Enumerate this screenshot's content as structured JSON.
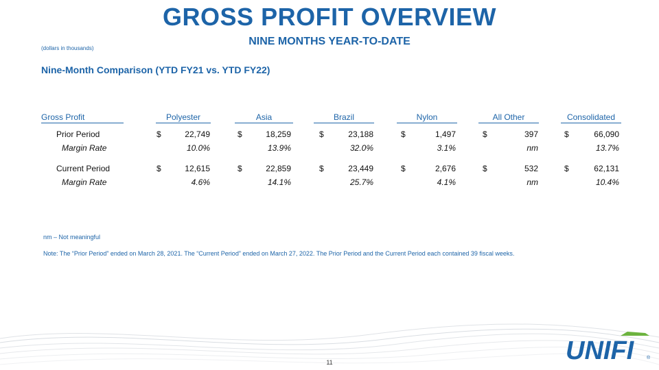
{
  "slide": {
    "title": "GROSS PROFIT OVERVIEW",
    "subtitle": "NINE MONTHS YEAR-TO-DATE",
    "units": "(dollars in thousands)",
    "section_heading": "Nine-Month Comparison (YTD FY21 vs. YTD FY22)",
    "page_number": "11"
  },
  "table": {
    "headers": [
      "Gross Profit",
      "Polyester",
      "Asia",
      "Brazil",
      "Nylon",
      "All Other",
      "Consolidated"
    ],
    "rows": [
      {
        "label": "Prior Period",
        "type": "amount",
        "cells": [
          {
            "sym": "$",
            "val": "22,749"
          },
          {
            "sym": "$",
            "val": "18,259"
          },
          {
            "sym": "$",
            "val": "23,188"
          },
          {
            "sym": "$",
            "val": "1,497"
          },
          {
            "sym": "$",
            "val": "397"
          },
          {
            "sym": "$",
            "val": "66,090"
          }
        ]
      },
      {
        "label": "Margin Rate",
        "type": "margin",
        "cells": [
          {
            "sym": "",
            "val": "10.0%"
          },
          {
            "sym": "",
            "val": "13.9%"
          },
          {
            "sym": "",
            "val": "32.0%"
          },
          {
            "sym": "",
            "val": "3.1%"
          },
          {
            "sym": "",
            "val": "nm"
          },
          {
            "sym": "",
            "val": "13.7%"
          }
        ]
      },
      {
        "label": "Current Period",
        "type": "amount",
        "cells": [
          {
            "sym": "$",
            "val": "12,615"
          },
          {
            "sym": "$",
            "val": "22,859"
          },
          {
            "sym": "$",
            "val": "23,449"
          },
          {
            "sym": "$",
            "val": "2,676"
          },
          {
            "sym": "$",
            "val": "532"
          },
          {
            "sym": "$",
            "val": "62,131"
          }
        ]
      },
      {
        "label": "Margin Rate",
        "type": "margin",
        "cells": [
          {
            "sym": "",
            "val": "4.6%"
          },
          {
            "sym": "",
            "val": "14.1%"
          },
          {
            "sym": "",
            "val": "25.7%"
          },
          {
            "sym": "",
            "val": "4.1%"
          },
          {
            "sym": "",
            "val": "nm"
          },
          {
            "sym": "",
            "val": "10.4%"
          }
        ]
      }
    ]
  },
  "footnote": "nm – Not meaningful",
  "note": "Note: The “Prior Period” ended on March 28, 2021. The “Current Period” ended on March 27, 2022.  The Prior Period and the Current Period each contained 39 fiscal weeks.",
  "logo": {
    "text": "UNIFI",
    "mark": "®",
    "color": "#1d64a8",
    "accent": "#6cb33f"
  },
  "colors": {
    "primary": "#1d64a8"
  }
}
